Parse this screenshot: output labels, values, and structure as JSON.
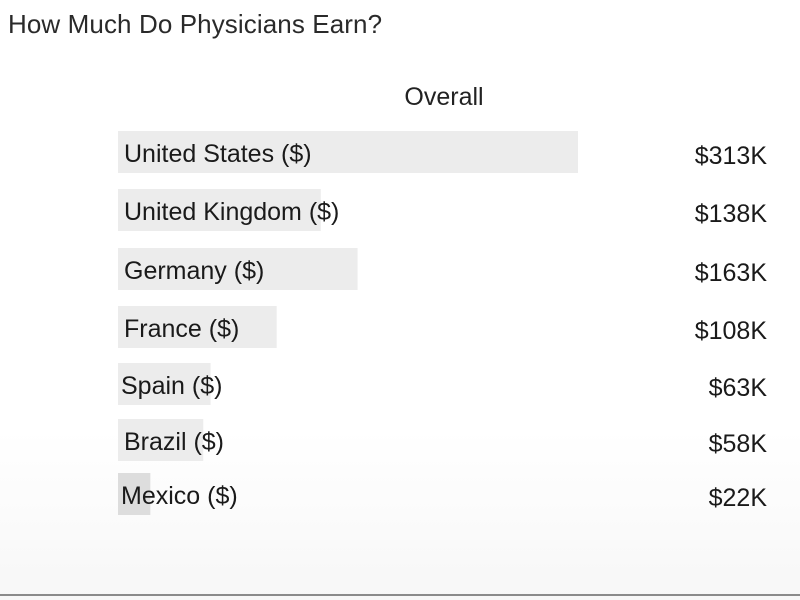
{
  "page": {
    "title": "How Much Do Physicians Earn?"
  },
  "chart_data": {
    "type": "bar",
    "orientation": "horizontal",
    "subtitle": "Overall",
    "categories": [
      "United States ($)",
      "United Kingdom ($)",
      "Germany ($)",
      "France ($)",
      "Spain ($)",
      "Brazil ($)",
      "Mexico ($)"
    ],
    "values": [
      313,
      138,
      163,
      108,
      63,
      58,
      22
    ],
    "value_labels": [
      "$313K",
      "$138K",
      "$163K",
      "$108K",
      "$63K",
      "$58K",
      "$22K"
    ],
    "unit": "$K",
    "xlim": [
      0,
      313
    ],
    "grid": false,
    "legend": "none",
    "colors": {
      "bar": "#ececec",
      "bar_small": "#dddddd",
      "text": "#1a1a1a"
    }
  }
}
